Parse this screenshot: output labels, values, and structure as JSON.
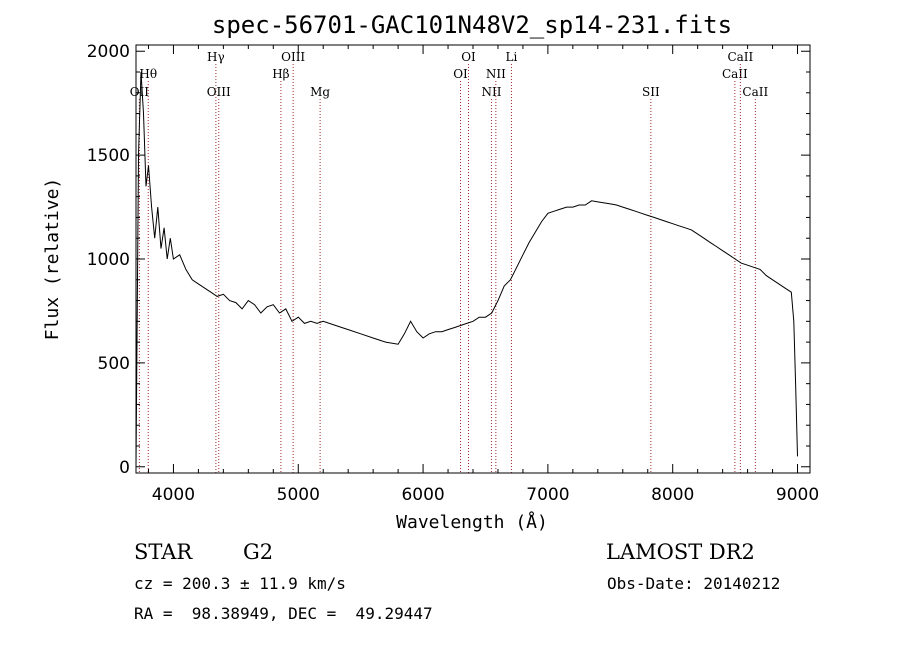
{
  "chart_data": {
    "type": "line",
    "title": "spec-56701-GAC101N48V2_sp14-231.fits",
    "xlabel": "Wavelength (Å)",
    "ylabel": "Flux (relative)",
    "xlim": [
      3700,
      9100
    ],
    "ylim": [
      -30,
      2030
    ],
    "xticks": [
      4000,
      5000,
      6000,
      7000,
      8000,
      9000
    ],
    "yticks": [
      0,
      500,
      1000,
      1500,
      2000
    ],
    "grid": false,
    "series": [
      {
        "x": [
          3700,
          3720,
          3740,
          3760,
          3780,
          3800,
          3825,
          3850,
          3875,
          3900,
          3925,
          3950,
          3975,
          4000,
          4050,
          4100,
          4150,
          4200,
          4250,
          4300,
          4350,
          4400,
          4450,
          4500,
          4550,
          4600,
          4650,
          4700,
          4750,
          4800,
          4850,
          4900,
          4950,
          5000,
          5050,
          5100,
          5150,
          5200,
          5300,
          5400,
          5500,
          5600,
          5700,
          5800,
          5850,
          5900,
          5950,
          6000,
          6050,
          6100,
          6150,
          6200,
          6250,
          6300,
          6350,
          6400,
          6450,
          6500,
          6550,
          6600,
          6650,
          6700,
          6750,
          6800,
          6850,
          6900,
          6950,
          7000,
          7050,
          7100,
          7150,
          7200,
          7250,
          7300,
          7350,
          7400,
          7450,
          7500,
          7550,
          7600,
          7650,
          7700,
          7750,
          7800,
          7850,
          7900,
          7950,
          8000,
          8050,
          8100,
          8150,
          8200,
          8250,
          8300,
          8350,
          8400,
          8450,
          8500,
          8550,
          8600,
          8650,
          8700,
          8750,
          8800,
          8850,
          8900,
          8950,
          8970,
          8985,
          9000
        ],
        "y": [
          5,
          1500,
          1900,
          1700,
          1350,
          1450,
          1250,
          1100,
          1250,
          1050,
          1150,
          1000,
          1100,
          1000,
          1020,
          950,
          900,
          880,
          860,
          840,
          820,
          830,
          800,
          790,
          760,
          800,
          780,
          740,
          770,
          780,
          740,
          760,
          700,
          720,
          690,
          700,
          690,
          700,
          680,
          660,
          640,
          620,
          600,
          590,
          640,
          700,
          650,
          620,
          640,
          650,
          650,
          660,
          670,
          680,
          690,
          700,
          720,
          720,
          740,
          800,
          870,
          900,
          960,
          1020,
          1080,
          1130,
          1180,
          1220,
          1230,
          1240,
          1250,
          1250,
          1260,
          1260,
          1280,
          1275,
          1270,
          1265,
          1260,
          1250,
          1240,
          1230,
          1220,
          1210,
          1200,
          1190,
          1180,
          1170,
          1160,
          1150,
          1140,
          1120,
          1100,
          1080,
          1060,
          1040,
          1020,
          1000,
          980,
          970,
          960,
          950,
          920,
          900,
          880,
          860,
          840,
          700,
          400,
          50
        ]
      }
    ],
    "spectral_lines": [
      {
        "label": "OII",
        "wavelength": 3727,
        "row": 3
      },
      {
        "label": "Hθ",
        "wavelength": 3798,
        "row": 2
      },
      {
        "label": "Hγ",
        "wavelength": 4340,
        "row": 1
      },
      {
        "label": "OIII",
        "wavelength": 4363,
        "row": 3
      },
      {
        "label": "Hβ",
        "wavelength": 4861,
        "row": 2
      },
      {
        "label": "OIII",
        "wavelength": 4959,
        "row": 1
      },
      {
        "label": "Mg",
        "wavelength": 5175,
        "row": 3
      },
      {
        "label": "OI",
        "wavelength": 6300,
        "row": 2
      },
      {
        "label": "OI",
        "wavelength": 6364,
        "row": 1
      },
      {
        "label": "NII",
        "wavelength": 6548,
        "row": 3
      },
      {
        "label": "NII",
        "wavelength": 6583,
        "row": 2
      },
      {
        "label": "Li",
        "wavelength": 6708,
        "row": 1
      },
      {
        "label": "SII",
        "wavelength": 7825,
        "row": 3
      },
      {
        "label": "CaII",
        "wavelength": 8498,
        "row": 2
      },
      {
        "label": "CaII",
        "wavelength": 8542,
        "row": 1
      },
      {
        "label": "CaII",
        "wavelength": 8662,
        "row": 3
      }
    ],
    "line_color": "#000000",
    "marker_color": "#a52a2a"
  },
  "info": {
    "object_class": "STAR",
    "subclass": "G2",
    "survey": "LAMOST DR2",
    "redshift": "cz = 200.3 ± 11.9 km/s",
    "obs_date": "Obs-Date: 20140212",
    "coords": "RA =  98.38949, DEC =  49.29447"
  }
}
